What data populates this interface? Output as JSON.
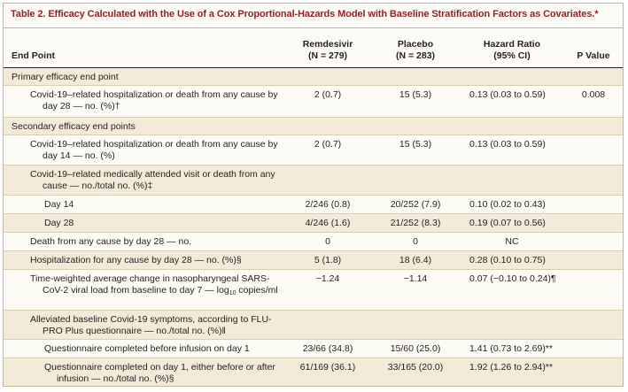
{
  "table": {
    "label": "Table 2.",
    "title": "Efficacy Calculated with the Use of a Cox Proportional-Hazards Model with Baseline Stratification Factors as Covariates.*"
  },
  "header": {
    "end_point": "End Point",
    "remdesivir": "Remdesivir",
    "remdesivir_n": "(N = 279)",
    "placebo": "Placebo",
    "placebo_n": "(N = 283)",
    "hazard_ratio": "Hazard Ratio",
    "hazard_ratio_ci": "(95% CI)",
    "p_value": "P Value"
  },
  "rows": [
    {
      "end_point": "Primary efficacy end point",
      "remdesivir": "",
      "placebo": "",
      "hazard_ratio": "",
      "p_value": ""
    },
    {
      "end_point": "Covid-19–related hospitalization or death from any cause by day 28 — no. (%)†",
      "remdesivir": "2 (0.7)",
      "placebo": "15 (5.3)",
      "hazard_ratio": "0.13 (0.03 to 0.59)",
      "p_value": "0.008"
    },
    {
      "end_point": "Secondary efficacy end points",
      "remdesivir": "",
      "placebo": "",
      "hazard_ratio": "",
      "p_value": ""
    },
    {
      "end_point": "Covid-19–related hospitalization or death from any cause by day 14 — no. (%)",
      "remdesivir": "2 (0.7)",
      "placebo": "15 (5.3)",
      "hazard_ratio": "0.13 (0.03 to 0.59)",
      "p_value": ""
    },
    {
      "end_point": "Covid-19–related medically attended visit or death from any cause — no./total no. (%)‡",
      "remdesivir": "",
      "placebo": "",
      "hazard_ratio": "",
      "p_value": ""
    },
    {
      "end_point": "Day 14",
      "remdesivir": "2/246 (0.8)",
      "placebo": "20/252 (7.9)",
      "hazard_ratio": "0.10 (0.02 to 0.43)",
      "p_value": ""
    },
    {
      "end_point": "Day 28",
      "remdesivir": "4/246 (1.6)",
      "placebo": "21/252 (8.3)",
      "hazard_ratio": "0.19 (0.07 to 0.56)",
      "p_value": ""
    },
    {
      "end_point": "Death from any cause by day 28 — no.",
      "remdesivir": "0",
      "placebo": "0",
      "hazard_ratio": "NC",
      "p_value": ""
    },
    {
      "end_point": "Hospitalization for any cause by day 28 — no. (%)§",
      "remdesivir": "5 (1.8)",
      "placebo": "18 (6.4)",
      "hazard_ratio": "0.28 (0.10 to 0.75)",
      "p_value": ""
    },
    {
      "end_point": "Time-weighted average change in nasopharyngeal SARS-CoV-2 viral load from baseline to day 7 — log",
      "end_point_sub": "10",
      "end_point_tail": " copies/ml",
      "remdesivir": "−1.24",
      "placebo": "−1.14",
      "hazard_ratio": "0.07 (−0.10 to 0.24)¶",
      "p_value": ""
    },
    {
      "end_point": "Alleviated baseline Covid-19 symptoms, according to FLU-PRO Plus questionnaire — no./total no. (%)‖",
      "remdesivir": "",
      "placebo": "",
      "hazard_ratio": "",
      "p_value": ""
    },
    {
      "end_point": "Questionnaire completed before infusion on day 1",
      "remdesivir": "23/66 (34.8)",
      "placebo": "15/60 (25.0)",
      "hazard_ratio": "1.41 (0.73 to 2.69)**",
      "p_value": ""
    },
    {
      "end_point": "Questionnaire completed on day 1, either before or after infusion — no./total no. (%)§",
      "remdesivir": "61/169 (36.1)",
      "placebo": "33/165 (20.0)",
      "hazard_ratio": "1.92 (1.26 to 2.94)**",
      "p_value": ""
    }
  ]
}
